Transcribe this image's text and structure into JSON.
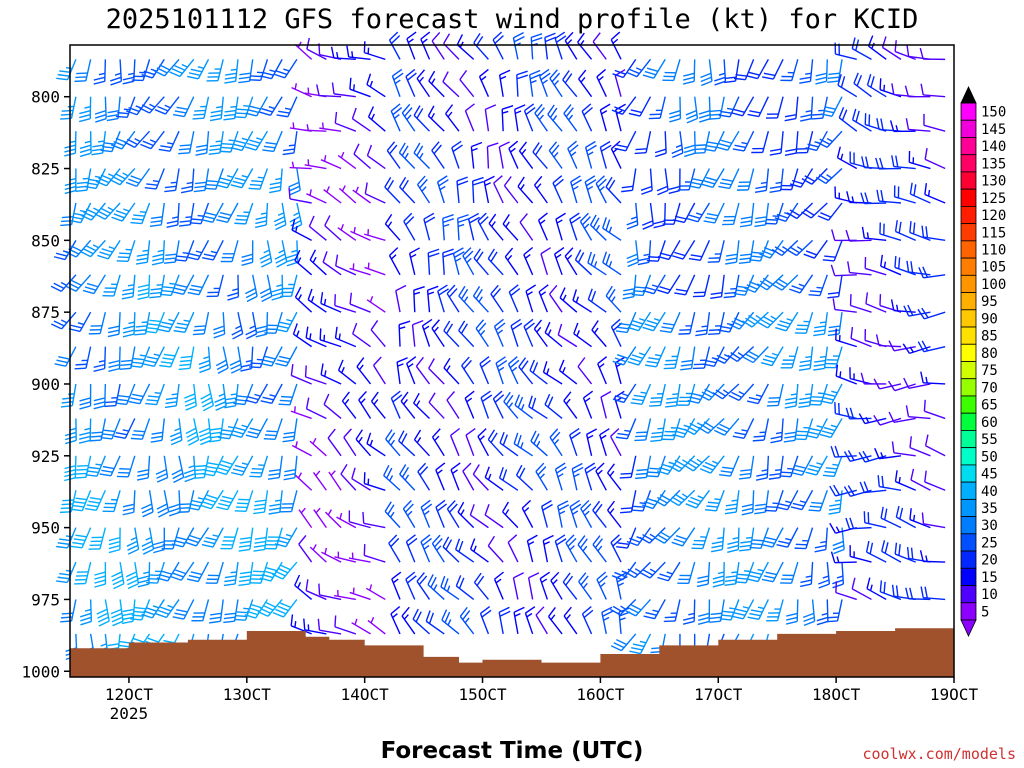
{
  "chart_data": {
    "type": "wind-barb-profile",
    "title": "2025101112 GFS forecast wind profile (kt) for KCID",
    "xlabel": "Forecast Time (UTC)",
    "ylabel": "",
    "x_ticks": [
      "12OCT",
      "13OCT",
      "14OCT",
      "15OCT",
      "16OCT",
      "17OCT",
      "18OCT",
      "19OCT"
    ],
    "x_tick_year": "2025",
    "x_range_days": [
      11.5,
      19.0
    ],
    "y_ticks": [
      "800",
      "825",
      "850",
      "875",
      "900",
      "925",
      "950",
      "975",
      "1000"
    ],
    "y_range_hpa": [
      782,
      1002
    ],
    "timestep_hours": 3,
    "levels_hpa": [
      787,
      800,
      812,
      825,
      837,
      850,
      862,
      875,
      887,
      900,
      912,
      925,
      937,
      950,
      962,
      975,
      987
    ],
    "surface_pressure_hpa": [
      {
        "day": 11.5,
        "p": 992
      },
      {
        "day": 12.0,
        "p": 990
      },
      {
        "day": 12.5,
        "p": 989
      },
      {
        "day": 13.0,
        "p": 986
      },
      {
        "day": 13.5,
        "p": 988
      },
      {
        "day": 13.7,
        "p": 989
      },
      {
        "day": 14.0,
        "p": 991
      },
      {
        "day": 14.5,
        "p": 995
      },
      {
        "day": 14.8,
        "p": 997
      },
      {
        "day": 15.0,
        "p": 996
      },
      {
        "day": 15.5,
        "p": 997
      },
      {
        "day": 16.0,
        "p": 994
      },
      {
        "day": 16.5,
        "p": 991
      },
      {
        "day": 17.0,
        "p": 989
      },
      {
        "day": 17.5,
        "p": 987
      },
      {
        "day": 18.0,
        "p": 986
      },
      {
        "day": 18.5,
        "p": 985
      },
      {
        "day": 19.0,
        "p": 986
      }
    ],
    "regimes": [
      {
        "label": "strong southerly flow",
        "day_start": 11.5,
        "day_end": 13.5,
        "dir_deg": 195,
        "speed_kt": 30
      },
      {
        "label": "light and variable",
        "day_start": 13.5,
        "day_end": 14.3,
        "dir_deg": 300,
        "speed_kt": 10
      },
      {
        "label": "northwesterly to northerly",
        "day_start": 14.3,
        "day_end": 16.3,
        "dir_deg": 330,
        "speed_kt": 18
      },
      {
        "label": "southerly flow",
        "day_start": 16.3,
        "day_end": 18.1,
        "dir_deg": 200,
        "speed_kt": 25
      },
      {
        "label": "westerly to northwesterly",
        "day_start": 18.1,
        "day_end": 19.0,
        "dir_deg": 280,
        "speed_kt": 15
      }
    ],
    "colorbar": {
      "labels": [
        "150",
        "145",
        "140",
        "135",
        "130",
        "125",
        "120",
        "115",
        "110",
        "105",
        "100",
        "95",
        "90",
        "85",
        "80",
        "75",
        "70",
        "65",
        "60",
        "55",
        "50",
        "45",
        "40",
        "35",
        "30",
        "25",
        "20",
        "15",
        "10",
        "5"
      ],
      "colors": [
        "#ff00ff",
        "#f200dc",
        "#ff0096",
        "#ff0064",
        "#ff0032",
        "#ff0000",
        "#ff1e00",
        "#ff3c00",
        "#ff6400",
        "#ff7d00",
        "#ff9600",
        "#ffaf00",
        "#ffc800",
        "#ffe100",
        "#ffff00",
        "#d2ff00",
        "#96ff00",
        "#3cff00",
        "#00ff3c",
        "#00ff96",
        "#00ffc8",
        "#00dcf0",
        "#00afff",
        "#0096ff",
        "#007dff",
        "#0050ff",
        "#0028ff",
        "#0000ff",
        "#5000ff",
        "#8c00ff"
      ]
    }
  },
  "credit": "coolwx.com/models",
  "colors": {
    "terrain": "#a0522d",
    "background": "#ffffff"
  }
}
